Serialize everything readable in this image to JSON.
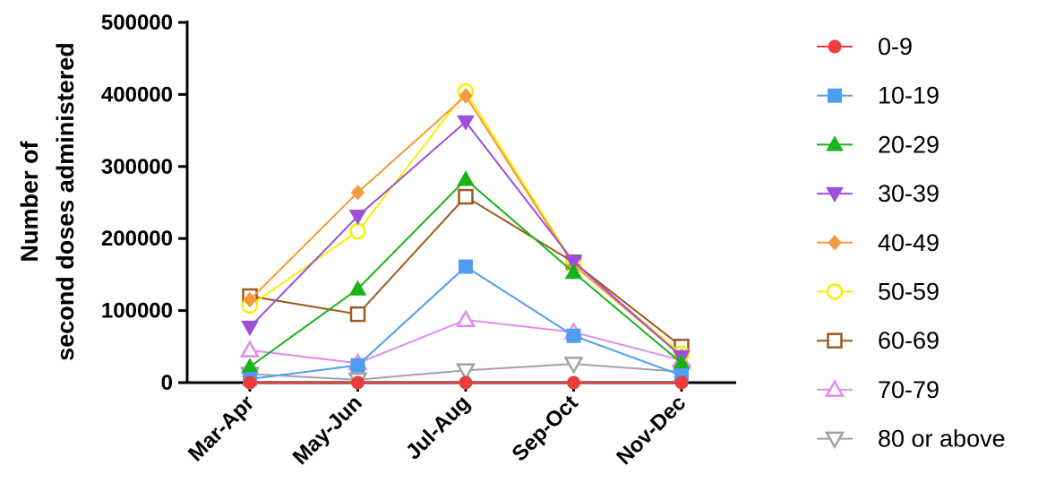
{
  "chart_data": {
    "type": "line",
    "categories": [
      "Mar-Apr",
      "May-Jun",
      "Jul-Aug",
      "Sep-Oct",
      "Nov-Dec"
    ],
    "ylabel_line1": "Number of",
    "ylabel_line2": "second doses administered",
    "ylim": [
      0,
      500000
    ],
    "yticks": [
      0,
      100000,
      200000,
      300000,
      400000,
      500000
    ],
    "ytick_labels": [
      "0",
      "100000",
      "200000",
      "300000",
      "400000",
      "500000"
    ],
    "grid": false,
    "legend_position": "right",
    "series": [
      {
        "name": "0-9",
        "values": [
          0,
          0,
          0,
          0,
          0
        ],
        "color": "#ee3b3b",
        "marker": "circle-filled"
      },
      {
        "name": "10-19",
        "values": [
          5000,
          24000,
          161000,
          65000,
          10000
        ],
        "color": "#4f9df0",
        "marker": "square-filled"
      },
      {
        "name": "20-29",
        "values": [
          22000,
          130000,
          282000,
          153000,
          27000
        ],
        "color": "#19b319",
        "marker": "triangle-up-filled"
      },
      {
        "name": "30-39",
        "values": [
          77000,
          231000,
          362000,
          168000,
          36000
        ],
        "color": "#9d4fdc",
        "marker": "triangle-down-filled"
      },
      {
        "name": "40-49",
        "values": [
          115000,
          264000,
          398000,
          163000,
          37000
        ],
        "color": "#f59a3a",
        "marker": "diamond-filled"
      },
      {
        "name": "50-59",
        "values": [
          107000,
          210000,
          404000,
          165000,
          40000
        ],
        "color": "#f5f000",
        "marker": "circle-open"
      },
      {
        "name": "60-69",
        "values": [
          120000,
          95000,
          258000,
          167000,
          50000
        ],
        "color": "#9c5a1e",
        "marker": "square-open"
      },
      {
        "name": "70-79",
        "values": [
          45000,
          27000,
          87000,
          70000,
          31000
        ],
        "color": "#e08cf0",
        "marker": "triangle-up-open"
      },
      {
        "name": "80 or above",
        "values": [
          12000,
          4000,
          17000,
          26000,
          15000
        ],
        "color": "#a3a3a3",
        "marker": "triangle-down-open"
      }
    ]
  }
}
